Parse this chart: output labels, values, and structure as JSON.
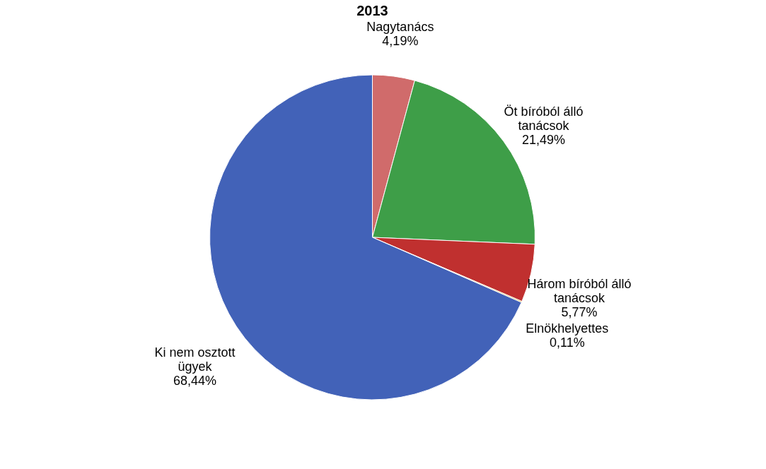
{
  "chart_data": {
    "type": "pie",
    "title": "2013",
    "categories": [
      "Nagytanács",
      "Öt bíróból álló tanácsok",
      "Három bíróból álló tanácsok",
      "Elnökhelyettes",
      "Ki nem osztott ügyek"
    ],
    "values": [
      4.19,
      21.49,
      5.77,
      0.11,
      68.44
    ],
    "value_labels": [
      "4,19%",
      "21,49%",
      "5,77%",
      "0,11%",
      "68,44%"
    ],
    "colors": [
      "#d06b6b",
      "#3e9e48",
      "#c0302f",
      "#c89a10",
      "#4262b8"
    ],
    "legend": false
  }
}
